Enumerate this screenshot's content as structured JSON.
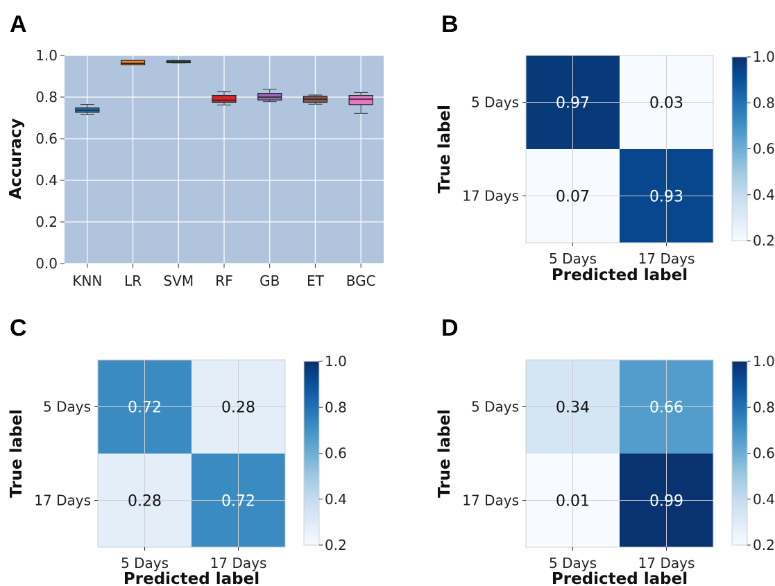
{
  "chart_data": [
    {
      "panel": "A",
      "type": "box",
      "xlabel": "",
      "ylabel": "Accuracy",
      "ylim": [
        0,
        1.0
      ],
      "yticks": [
        "0.0",
        "0.2",
        "0.4",
        "0.6",
        "0.8",
        "1.0"
      ],
      "grid": true,
      "background": "#b0c4de",
      "categories": [
        "KNN",
        "LR",
        "SVM",
        "RF",
        "GB",
        "ET",
        "BGC"
      ],
      "boxes": [
        {
          "label": "KNN",
          "min": 0.715,
          "q1": 0.727,
          "median": 0.737,
          "q3": 0.748,
          "max": 0.765,
          "color": "#1f77b4"
        },
        {
          "label": "LR",
          "min": 0.955,
          "q1": 0.955,
          "median": 0.962,
          "q3": 0.976,
          "max": 0.976,
          "color": "#ff7f0e"
        },
        {
          "label": "SVM",
          "min": 0.964,
          "q1": 0.965,
          "median": 0.97,
          "q3": 0.975,
          "max": 0.976,
          "color": "#2ca02c"
        },
        {
          "label": "RF",
          "min": 0.762,
          "q1": 0.775,
          "median": 0.785,
          "q3": 0.808,
          "max": 0.828,
          "color": "#d62728"
        },
        {
          "label": "GB",
          "min": 0.778,
          "q1": 0.786,
          "median": 0.8,
          "q3": 0.818,
          "max": 0.838,
          "color": "#9467bd"
        },
        {
          "label": "ET",
          "min": 0.766,
          "q1": 0.775,
          "median": 0.79,
          "q3": 0.804,
          "max": 0.81,
          "color": "#8c564b"
        },
        {
          "label": "BGC",
          "min": 0.722,
          "q1": 0.764,
          "median": 0.79,
          "q3": 0.808,
          "max": 0.822,
          "color": "#e377c2"
        }
      ]
    },
    {
      "panel": "B",
      "type": "heatmap",
      "xlabel": "Predicted label",
      "ylabel": "True label",
      "x_categories": [
        "5 Days",
        "17 Days"
      ],
      "y_categories": [
        "5 Days",
        "17 Days"
      ],
      "values": [
        [
          0.97,
          0.03
        ],
        [
          0.07,
          0.93
        ]
      ],
      "value_labels": [
        [
          "0.97",
          "0.03"
        ],
        [
          "0.07",
          "0.93"
        ]
      ],
      "colorbar": {
        "range": [
          0.2,
          1.0
        ],
        "ticks": [
          "0.2",
          "0.4",
          "0.6",
          "0.8",
          "1.0"
        ]
      },
      "colormap": "Blues"
    },
    {
      "panel": "C",
      "type": "heatmap",
      "xlabel": "Predicted label",
      "ylabel": "True label",
      "x_categories": [
        "5 Days",
        "17 Days"
      ],
      "y_categories": [
        "5 Days",
        "17 Days"
      ],
      "values": [
        [
          0.72,
          0.28
        ],
        [
          0.28,
          0.72
        ]
      ],
      "value_labels": [
        [
          "0.72",
          "0.28"
        ],
        [
          "0.28",
          "0.72"
        ]
      ],
      "colorbar": {
        "range": [
          0.2,
          1.0
        ],
        "ticks": [
          "0.2",
          "0.4",
          "0.6",
          "0.8",
          "1.0"
        ]
      },
      "colormap": "Blues"
    },
    {
      "panel": "D",
      "type": "heatmap",
      "xlabel": "Predicted label",
      "ylabel": "True label",
      "x_categories": [
        "5 Days",
        "17 Days"
      ],
      "y_categories": [
        "5 Days",
        "17 Days"
      ],
      "values": [
        [
          0.34,
          0.66
        ],
        [
          0.01,
          0.99
        ]
      ],
      "value_labels": [
        [
          "0.34",
          "0.66"
        ],
        [
          "0.01",
          "0.99"
        ]
      ],
      "colorbar": {
        "range": [
          0.2,
          1.0
        ],
        "ticks": [
          "0.2",
          "0.4",
          "0.6",
          "0.8",
          "1.0"
        ]
      },
      "colormap": "Blues"
    }
  ]
}
